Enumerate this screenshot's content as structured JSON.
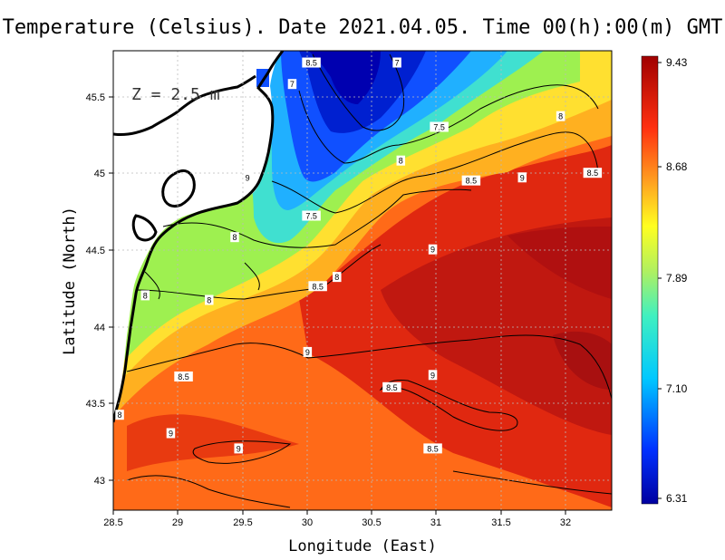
{
  "title": "Temperature (Celsius). Date 2021.04.05. Time 00(h):00(m) GMT",
  "depth_label": "Z = 2.5 m",
  "x_axis": {
    "label": "Longitude (East)",
    "ticks": [
      "28.5",
      "29",
      "29.5",
      "30",
      "30.5",
      "31",
      "31.5",
      "32"
    ],
    "range": [
      28.5,
      32.4
    ]
  },
  "y_axis": {
    "label": "Latitude (North)",
    "ticks": [
      "43",
      "43.5",
      "44",
      "44.5",
      "45",
      "45.5"
    ],
    "range": [
      42.8,
      45.8
    ]
  },
  "colorbar": {
    "ticks": [
      "9.43",
      "8.68",
      "7.89",
      "7.10",
      "6.31"
    ],
    "min": 6.31,
    "max": 9.43
  },
  "contour_labels": [
    {
      "text": "8.5",
      "lon": 30.05,
      "lat": 45.72
    },
    {
      "text": "7",
      "lon": 29.9,
      "lat": 45.58
    },
    {
      "text": "7",
      "lon": 30.72,
      "lat": 45.72
    },
    {
      "text": "7.5",
      "lon": 31.05,
      "lat": 45.3
    },
    {
      "text": "8",
      "lon": 32.0,
      "lat": 45.37
    },
    {
      "text": "8",
      "lon": 30.75,
      "lat": 45.08
    },
    {
      "text": "8.5",
      "lon": 32.25,
      "lat": 45.0
    },
    {
      "text": "9",
      "lon": 31.7,
      "lat": 44.97
    },
    {
      "text": "8.5",
      "lon": 31.3,
      "lat": 44.95
    },
    {
      "text": "9",
      "lon": 29.55,
      "lat": 44.97
    },
    {
      "text": "7.5",
      "lon": 30.05,
      "lat": 44.72
    },
    {
      "text": "8",
      "lon": 29.45,
      "lat": 44.58
    },
    {
      "text": "9",
      "lon": 31.0,
      "lat": 44.5
    },
    {
      "text": "8",
      "lon": 30.25,
      "lat": 44.32
    },
    {
      "text": "8.5",
      "lon": 30.1,
      "lat": 44.26
    },
    {
      "text": "8",
      "lon": 28.75,
      "lat": 44.2
    },
    {
      "text": "8",
      "lon": 29.25,
      "lat": 44.17
    },
    {
      "text": "9",
      "lon": 30.02,
      "lat": 43.83
    },
    {
      "text": "8.5",
      "lon": 29.05,
      "lat": 43.67
    },
    {
      "text": "9",
      "lon": 31.0,
      "lat": 43.68
    },
    {
      "text": "8.5",
      "lon": 30.68,
      "lat": 43.6
    },
    {
      "text": "8",
      "lon": 28.55,
      "lat": 43.42
    },
    {
      "text": "9",
      "lon": 28.95,
      "lat": 43.3
    },
    {
      "text": "9",
      "lon": 29.48,
      "lat": 43.2
    },
    {
      "text": "8.5",
      "lon": 31.0,
      "lat": 43.2
    }
  ]
}
